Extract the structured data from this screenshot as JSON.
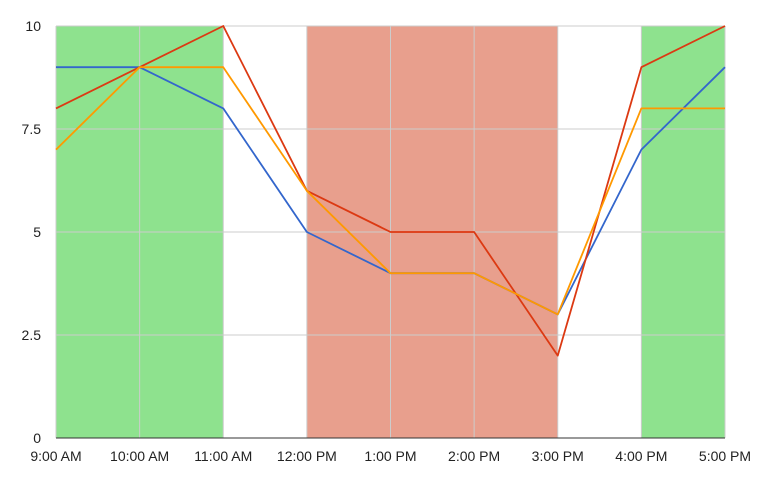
{
  "chart_data": {
    "type": "line",
    "title": "",
    "xlabel": "",
    "ylabel": "",
    "categories": [
      "9:00 AM",
      "10:00 AM",
      "11:00 AM",
      "12:00 PM",
      "1:00 PM",
      "2:00 PM",
      "3:00 PM",
      "4:00 PM",
      "5:00 PM"
    ],
    "ylim": [
      0,
      10
    ],
    "yticks": [
      0,
      2.5,
      5,
      7.5,
      10
    ],
    "ytick_labels": [
      "0",
      "2.5",
      "5",
      "7.5",
      "10"
    ],
    "grid": true,
    "legend": "none",
    "bands": [
      {
        "from": "9:00 AM",
        "to": "11:00 AM",
        "color": "#8ee28e"
      },
      {
        "from": "12:00 PM",
        "to": "3:00 PM",
        "color": "#e89f8d"
      },
      {
        "from": "4:00 PM",
        "to": "5:00 PM",
        "color": "#8ee28e"
      }
    ],
    "series": [
      {
        "color": "#3366cc",
        "values": [
          9,
          9,
          8,
          5,
          4,
          4,
          3,
          7,
          9
        ]
      },
      {
        "color": "#dc3912",
        "values": [
          8,
          9,
          10,
          6,
          5,
          5,
          2,
          9,
          10
        ]
      },
      {
        "color": "#ff9900",
        "values": [
          7,
          9,
          9,
          6,
          4,
          4,
          3,
          8,
          8
        ]
      }
    ]
  }
}
